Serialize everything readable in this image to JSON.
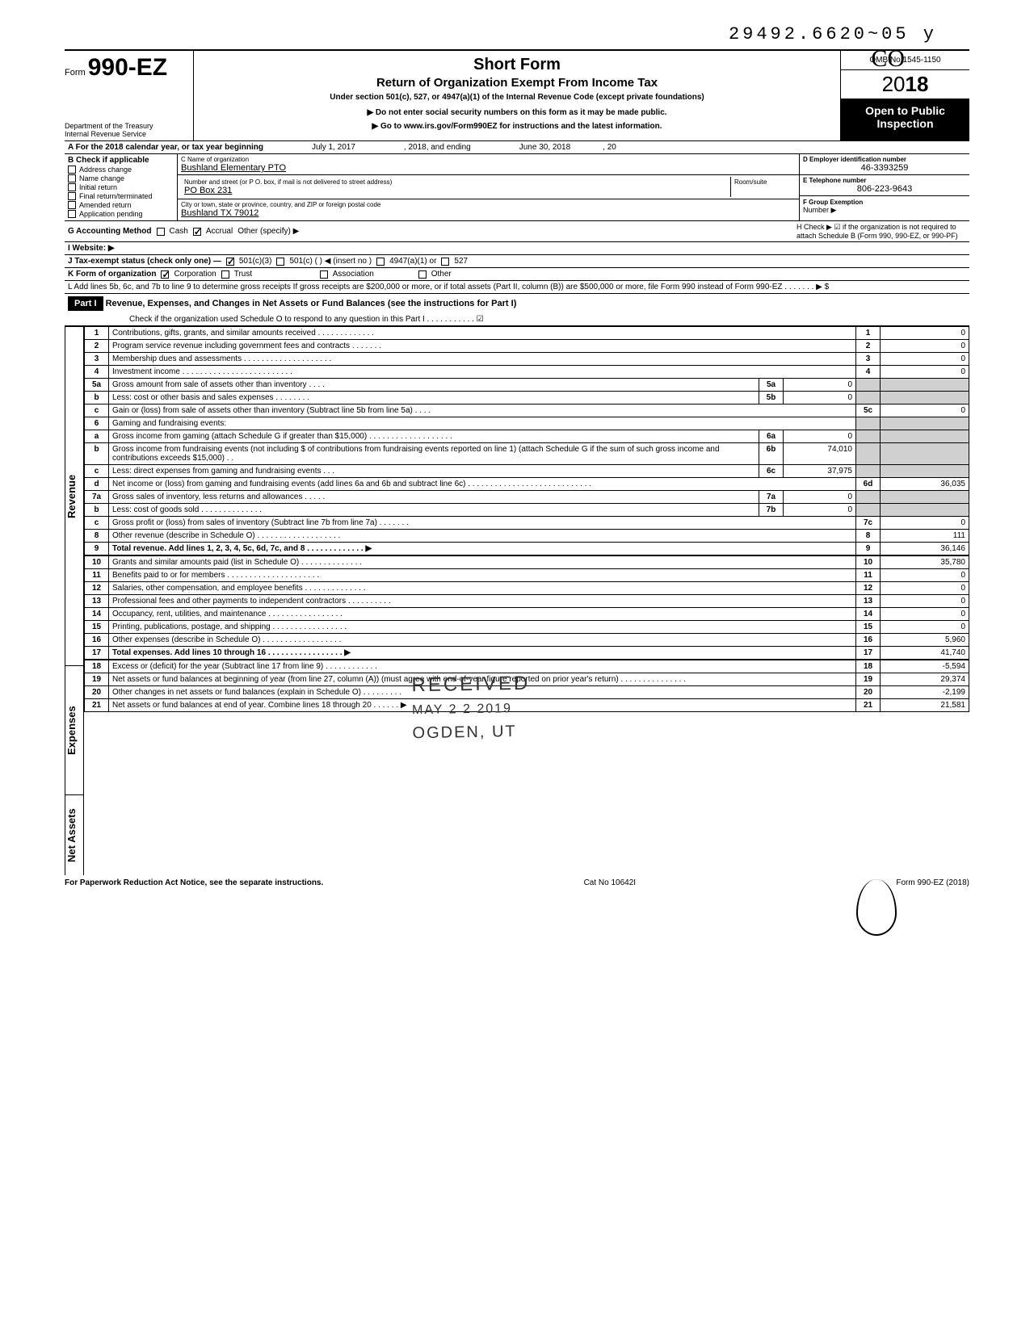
{
  "stamp_top": "29492.6620~05 y",
  "initials": "CO",
  "header": {
    "form_prefix": "Form",
    "form_number": "990-EZ",
    "title": "Short Form",
    "subtitle": "Return of Organization Exempt From Income Tax",
    "under": "Under section 501(c), 527, or 4947(a)(1) of the Internal Revenue Code (except private foundations)",
    "note1": "▶ Do not enter social security numbers on this form as it may be made public.",
    "note2": "▶ Go to www.irs.gov/Form990EZ for instructions and the latest information.",
    "dept1": "Department of the Treasury",
    "dept2": "Internal Revenue Service",
    "omb": "OMB No 1545-1150",
    "year_prefix": "20",
    "year_bold": "18",
    "inspect1": "Open to Public",
    "inspect2": "Inspection"
  },
  "row_a": {
    "label": "A For the 2018 calendar year, or tax year beginning",
    "begin": "July 1, 2017",
    "mid": ", 2018, and ending",
    "end": "June 30, 2018",
    "tail": ", 20"
  },
  "col_b": {
    "header": "B Check if applicable",
    "items": [
      "Address change",
      "Name change",
      "Initial return",
      "Final return/terminated",
      "Amended return",
      "Application pending"
    ]
  },
  "col_c": {
    "name_lbl": "C Name of organization",
    "name_val": "Bushland Elementary PTO",
    "street_lbl": "Number and street (or P O. box, if mail is not delivered to street address)",
    "room_lbl": "Room/suite",
    "street_val": "PO Box 231",
    "city_lbl": "City or town, state or province, country, and ZIP or foreign postal code",
    "city_val": "Bushland TX  79012"
  },
  "col_d": {
    "ein_lbl": "D Employer identification number",
    "ein_val": "46-3393259",
    "tel_lbl": "E Telephone number",
    "tel_val": "806-223-9643",
    "grp_lbl": "F Group Exemption",
    "grp_lbl2": "Number ▶"
  },
  "line_g": {
    "label": "G Accounting Method",
    "opts": [
      "Cash",
      "Accrual"
    ],
    "checked": 1,
    "other": "Other (specify) ▶"
  },
  "line_h": "H Check ▶ ☑ if the organization is not required to attach Schedule B (Form 990, 990-EZ, or 990-PF)",
  "line_i": "I Website: ▶",
  "line_j": {
    "label": "J Tax-exempt status (check only one) —",
    "opts": [
      "501(c)(3)",
      "501(c) (        ) ◀ (insert no )",
      "4947(a)(1) or",
      "527"
    ],
    "checked": 0
  },
  "line_k": {
    "label": "K Form of organization",
    "opts": [
      "Corporation",
      "Trust",
      "Association",
      "Other"
    ],
    "checked": 0
  },
  "line_l": "L Add lines 5b, 6c, and 7b to line 9 to determine gross receipts  If gross receipts are $200,000 or more, or if total assets (Part II, column (B)) are $500,000 or more, file Form 990 instead of Form 990-EZ   .    .    .     .     .    .    .       ▶   $",
  "part1": {
    "label": "Part I",
    "title": "Revenue, Expenses, and Changes in Net Assets or Fund Balances (see the instructions for Part I)",
    "sub": "Check if the organization used Schedule O to respond to any question in this Part I  .   .   .   .   .   .   .   .   .   .   .  ☑"
  },
  "sections": {
    "revenue": "Revenue",
    "expenses": "Expenses",
    "netassets": "Net Assets"
  },
  "rows": [
    {
      "n": "1",
      "t": "Contributions, gifts, grants, and similar amounts received .   .   .   .   .   .   .   .   .   .   .   .   .",
      "rn": "1",
      "rv": "0"
    },
    {
      "n": "2",
      "t": "Program service revenue including government fees and contracts    .    .    .    .    .    .    .",
      "rn": "2",
      "rv": "0"
    },
    {
      "n": "3",
      "t": "Membership dues and assessments .   .   .   .   .   .   .   .   .   .   .   .   .   .   .   .   .   .   .   .",
      "rn": "3",
      "rv": "0"
    },
    {
      "n": "4",
      "t": "Investment income    .   .   .   .   .   .   .   .   .   .   .   .   .   .   .   .   .   .   .   .   .   .   .   .   .",
      "rn": "4",
      "rv": "0"
    },
    {
      "n": "5a",
      "t": "Gross amount from sale of assets other than inventory    .   .   .   .",
      "mn": "5a",
      "mv": "0"
    },
    {
      "n": "b",
      "t": "Less: cost or other basis and sales expenses .   .   .   .   .   .   .   .",
      "mn": "5b",
      "mv": "0"
    },
    {
      "n": "c",
      "t": "Gain or (loss) from sale of assets other than inventory (Subtract line 5b from line 5a) .   .   .   .",
      "rn": "5c",
      "rv": "0"
    },
    {
      "n": "6",
      "t": "Gaming and fundraising events:"
    },
    {
      "n": "a",
      "t": "Gross income from gaming (attach Schedule G if greater than $15,000) .   .   .   .   .   .   .   .   .   .   .   .   .   .   .   .   .   .   .",
      "mn": "6a",
      "mv": "0"
    },
    {
      "n": "b",
      "t": "Gross income from fundraising events (not including  $               of contributions from fundraising events reported on line 1) (attach Schedule G if the sum of such gross income and contributions exceeds $15,000) .   .",
      "mn": "6b",
      "mv": "74,010"
    },
    {
      "n": "c",
      "t": "Less: direct expenses from gaming and fundraising events    .   .   .",
      "mn": "6c",
      "mv": "37,975"
    },
    {
      "n": "d",
      "t": "Net income or (loss) from gaming and fundraising events (add lines 6a and 6b and subtract line 6c)    .   .   .   .   .   .   .   .   .   .   .   .   .   .   .   .   .   .   .   .   .   .   .   .   .   .   .   .",
      "rn": "6d",
      "rv": "36,035"
    },
    {
      "n": "7a",
      "t": "Gross sales of inventory, less returns and allowances   .   .   .   .   .",
      "mn": "7a",
      "mv": "0"
    },
    {
      "n": "b",
      "t": "Less: cost of goods sold     .   .   .   .   .   .   .   .   .   .   .   .   .   .",
      "mn": "7b",
      "mv": "0"
    },
    {
      "n": "c",
      "t": "Gross profit or (loss) from sales of inventory (Subtract line 7b from line 7a)  .   .   .   .   .   .   .",
      "rn": "7c",
      "rv": "0"
    },
    {
      "n": "8",
      "t": "Other revenue (describe in Schedule O) .   .   .   .   .   .   .   .   .   .   .   .   .   .   .   .   .   .   .",
      "rn": "8",
      "rv": "111"
    },
    {
      "n": "9",
      "t": "Total revenue. Add lines 1, 2, 3, 4, 5c, 6d, 7c, and 8    .   .   .   .   .   .   .   .   .   .   .   .   .  ▶",
      "rn": "9",
      "rv": "36,146",
      "bold": true
    }
  ],
  "exp_rows": [
    {
      "n": "10",
      "t": "Grants and similar amounts paid (list in Schedule O)   .   .   .   .   .   .   .   .   .   .   .   .   .   .",
      "rn": "10",
      "rv": "35,780"
    },
    {
      "n": "11",
      "t": "Benefits paid to or for members   .   .   .   .   .   .   .   .   .   .   .   .   .   .   .   .   .   .   .   .   .",
      "rn": "11",
      "rv": "0"
    },
    {
      "n": "12",
      "t": "Salaries, other compensation, and employee benefits   .   .   .   .   .   .   .   .   .   .   .   .   .   .",
      "rn": "12",
      "rv": "0"
    },
    {
      "n": "13",
      "t": "Professional fees and other payments to independent contractors  .   .   .   .   .   .   .   .   .   .",
      "rn": "13",
      "rv": "0"
    },
    {
      "n": "14",
      "t": "Occupancy, rent, utilities, and maintenance    .   .   .   .   .   .   .   .   .   .   .   .   .   .   .   .   .",
      "rn": "14",
      "rv": "0"
    },
    {
      "n": "15",
      "t": "Printing, publications, postage, and shipping .   .   .   .   .   .   .   .   .   .   .   .   .   .   .   .   .",
      "rn": "15",
      "rv": "0"
    },
    {
      "n": "16",
      "t": "Other expenses (describe in Schedule O)  .   .   .   .   .   .   .   .   .   .   .   .   .   .   .   .   .   .",
      "rn": "16",
      "rv": "5,960"
    },
    {
      "n": "17",
      "t": "Total expenses. Add lines 10 through 16  .   .   .   .   .   .   .   .   .   .   .   .   .   .   .   .   .  ▶",
      "rn": "17",
      "rv": "41,740",
      "bold": true
    }
  ],
  "net_rows": [
    {
      "n": "18",
      "t": "Excess or (deficit) for the year (Subtract line 17 from line 9)    .   .   .   .   .   .   .   .   .   .   .   .",
      "rn": "18",
      "rv": "-5,594"
    },
    {
      "n": "19",
      "t": "Net assets or fund balances at beginning of year (from line 27, column (A)) (must agree with end-of-year figure reported on prior year's return)    .   .   .   .   .   .   .   .   .   .   .   .   .   .   .",
      "rn": "19",
      "rv": "29,374"
    },
    {
      "n": "20",
      "t": "Other changes in net assets or fund balances (explain in Schedule O) .   .   .   .   .   .   .   .   .",
      "rn": "20",
      "rv": "-2,199"
    },
    {
      "n": "21",
      "t": "Net assets or fund balances at end of year. Combine lines 18 through 20   .   .   .   .   .   .  ▶",
      "rn": "21",
      "rv": "21,581"
    }
  ],
  "received_stamp": {
    "line1": "RECEIVED",
    "line2": "MAY  2 2  2019",
    "line3": "OGDEN, UT"
  },
  "footer": {
    "left": "For Paperwork Reduction Act Notice, see the separate instructions.",
    "mid": "Cat No 10642I",
    "right": "Form 990-EZ (2018)"
  }
}
